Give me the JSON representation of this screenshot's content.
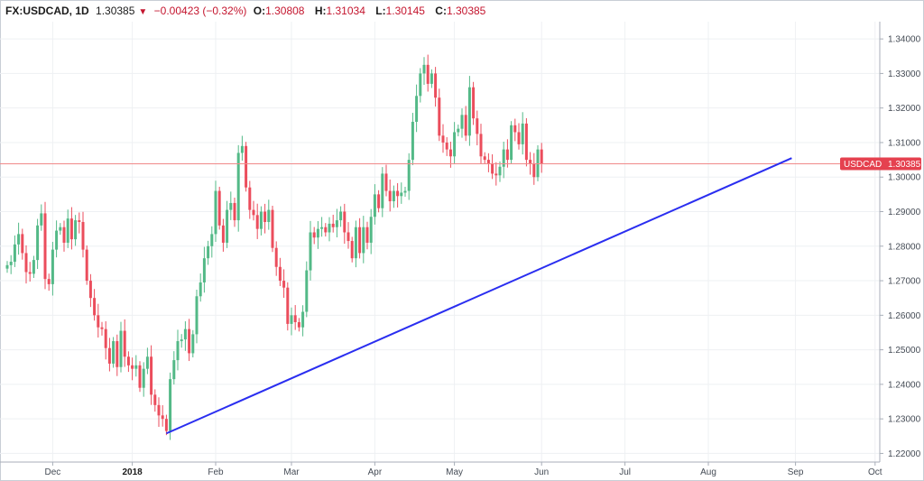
{
  "header": {
    "symbol": "FX:USDCAD, 1D",
    "last": "1.30385",
    "direction_icon": "down-triangle-icon",
    "change": "−0.00423 (−0.32%)",
    "open_label": "O:",
    "open": "1.30808",
    "high_label": "H:",
    "high": "1.31034",
    "low_label": "L:",
    "low": "1.30145",
    "close_label": "C:",
    "close": "1.30385"
  },
  "price_tag": {
    "label": "USDCAD",
    "value": "1.30385"
  },
  "colors": {
    "up": "#53b987",
    "down": "#eb4d5c",
    "trendline": "#2a2ef0",
    "price_line": "#f08a8a",
    "price_tag_bg": "#e5414f",
    "grid": "#eef0f3"
  },
  "chart_data": {
    "type": "candlestick",
    "title": "",
    "ylim": [
      1.2175,
      1.345
    ],
    "y_ticks": [
      "1.34000",
      "1.33000",
      "1.32000",
      "1.31000",
      "1.30000",
      "1.29000",
      "1.28000",
      "1.27000",
      "1.26000",
      "1.25000",
      "1.24000",
      "1.23000",
      "1.22000"
    ],
    "x_ticks": [
      {
        "label": "Dec",
        "bold": false,
        "index": 12
      },
      {
        "label": "2018",
        "bold": true,
        "index": 33
      },
      {
        "label": "Feb",
        "bold": false,
        "index": 55
      },
      {
        "label": "Mar",
        "bold": false,
        "index": 75
      },
      {
        "label": "Apr",
        "bold": false,
        "index": 97
      },
      {
        "label": "May",
        "bold": false,
        "index": 118
      },
      {
        "label": "Jun",
        "bold": false,
        "index": 141
      },
      {
        "label": "Jul",
        "bold": false,
        "index": 163
      },
      {
        "label": "Aug",
        "bold": false,
        "index": 185
      },
      {
        "label": "Sep",
        "bold": false,
        "index": 208
      },
      {
        "label": "Oct",
        "bold": false,
        "index": 229
      }
    ],
    "last_price": 1.30385,
    "closes": [
      1.2745,
      1.2755,
      1.2805,
      1.2835,
      1.278,
      1.2725,
      1.272,
      1.276,
      1.286,
      1.2895,
      1.2705,
      1.269,
      1.279,
      1.2845,
      1.2855,
      1.281,
      1.288,
      1.282,
      1.2875,
      1.287,
      1.279,
      1.27,
      1.265,
      1.26,
      1.2565,
      1.256,
      1.2505,
      1.246,
      1.2525,
      1.245,
      1.2555,
      1.248,
      1.2455,
      1.2445,
      1.2455,
      1.239,
      1.2445,
      1.248,
      1.237,
      1.234,
      1.231,
      1.23,
      1.2265,
      1.2415,
      1.247,
      1.2525,
      1.253,
      1.256,
      1.249,
      1.2545,
      1.2655,
      1.2695,
      1.2765,
      1.28,
      1.2835,
      1.296,
      1.286,
      1.281,
      1.2905,
      1.2925,
      1.2875,
      1.307,
      1.309,
      1.297,
      1.2905,
      1.289,
      1.285,
      1.29,
      1.287,
      1.2905,
      1.2795,
      1.274,
      1.27,
      1.268,
      1.2575,
      1.26,
      1.258,
      1.2565,
      1.261,
      1.273,
      1.284,
      1.2825,
      1.285,
      1.2855,
      1.284,
      1.2865,
      1.2855,
      1.2875,
      1.29,
      1.284,
      1.2815,
      1.2765,
      1.2855,
      1.278,
      1.2855,
      1.281,
      1.2885,
      1.295,
      1.291,
      1.301,
      1.296,
      1.293,
      1.296,
      1.2945,
      1.2955,
      1.296,
      1.305,
      1.316,
      1.3235,
      1.33,
      1.3325,
      1.327,
      1.33,
      1.323,
      1.312,
      1.31,
      1.308,
      1.306,
      1.313,
      1.314,
      1.318,
      1.312,
      1.326,
      1.317,
      1.3125,
      1.306,
      1.305,
      1.304,
      1.301,
      1.3005,
      1.303,
      1.308,
      1.305,
      1.315,
      1.313,
      1.3095,
      1.3155,
      1.305,
      1.304,
      1.3,
      1.308,
      1.30385
    ]
  }
}
